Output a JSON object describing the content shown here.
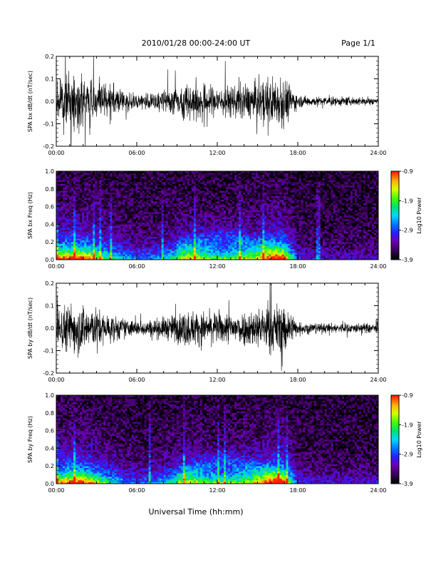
{
  "header": {
    "title": "2010/01/28  00:00-24:00 UT",
    "page": "Page 1/1"
  },
  "footer": {
    "xlabel": "Universal Time (hh:mm)"
  },
  "colors": {
    "background": "#ffffff",
    "trace": "#000000",
    "colormap": [
      "#000000",
      "#3a0058",
      "#6a00b0",
      "#2a1cff",
      "#0078ff",
      "#00d8ff",
      "#00e070",
      "#40ff00",
      "#d8ff00",
      "#ffb000",
      "#ff2000"
    ]
  },
  "chart_data": [
    {
      "type": "line",
      "ylabel": "SPA bx dB/dt (nT/sec)",
      "xlim": [
        "00:00",
        "24:00"
      ],
      "ylim": [
        -0.2,
        0.2
      ],
      "x_ticks": [
        "00:00",
        "06:00",
        "12:00",
        "18:00",
        "24:00"
      ],
      "y_ticks": [
        "-0.2",
        "-0.1",
        "0.0",
        "0.1",
        "0.2"
      ],
      "series": [
        {
          "x_hours": [
            0,
            1,
            2,
            3,
            4,
            5,
            6,
            7,
            8,
            9,
            10,
            11,
            12,
            13,
            14,
            15,
            16,
            17,
            18,
            19,
            20,
            21,
            22,
            23,
            24
          ],
          "envelope_amplitude": [
            0.18,
            0.2,
            0.2,
            0.16,
            0.12,
            0.09,
            0.07,
            0.07,
            0.09,
            0.12,
            0.16,
            0.14,
            0.12,
            0.13,
            0.14,
            0.15,
            0.2,
            0.2,
            0.05,
            0.04,
            0.035,
            0.035,
            0.035,
            0.035,
            0.035
          ]
        }
      ]
    },
    {
      "type": "heatmap",
      "ylabel": "SPA bx Freq (Hz)",
      "xlim": [
        "00:00",
        "24:00"
      ],
      "ylim": [
        0.0,
        1.0
      ],
      "x_ticks": [
        "00:00",
        "06:00",
        "12:00",
        "18:00",
        "24:00"
      ],
      "y_ticks": [
        "0.0",
        "0.2",
        "0.4",
        "0.6",
        "0.8",
        "1.0"
      ],
      "colorbar": {
        "label": "Log10 Power",
        "range": [
          -3.9,
          -0.9
        ],
        "ticks": [
          "-0.9",
          "-1.9",
          "-2.9",
          "-3.9"
        ]
      }
    },
    {
      "type": "line",
      "ylabel": "SPA by dB/dt (nT/sec)",
      "xlim": [
        "00:00",
        "24:00"
      ],
      "ylim": [
        -0.2,
        0.2
      ],
      "x_ticks": [
        "00:00",
        "06:00",
        "12:00",
        "18:00",
        "24:00"
      ],
      "y_ticks": [
        "-0.2",
        "-0.1",
        "0.0",
        "0.1",
        "0.2"
      ],
      "series": [
        {
          "x_hours": [
            0,
            1,
            2,
            3,
            4,
            5,
            6,
            7,
            8,
            9,
            10,
            11,
            12,
            13,
            14,
            15,
            16,
            17,
            18,
            19,
            20,
            21,
            22,
            23,
            24
          ],
          "envelope_amplitude": [
            0.16,
            0.2,
            0.2,
            0.15,
            0.11,
            0.08,
            0.06,
            0.07,
            0.09,
            0.12,
            0.15,
            0.13,
            0.12,
            0.13,
            0.14,
            0.16,
            0.2,
            0.2,
            0.05,
            0.045,
            0.04,
            0.04,
            0.04,
            0.04,
            0.04
          ]
        }
      ]
    },
    {
      "type": "heatmap",
      "ylabel": "SPA by Freq (Hz)",
      "xlim": [
        "00:00",
        "24:00"
      ],
      "ylim": [
        0.0,
        1.0
      ],
      "x_ticks": [
        "00:00",
        "06:00",
        "12:00",
        "18:00",
        "24:00"
      ],
      "y_ticks": [
        "0.0",
        "0.2",
        "0.4",
        "0.6",
        "0.8",
        "1.0"
      ],
      "colorbar": {
        "label": "Log10 Power",
        "range": [
          -3.9,
          -0.9
        ],
        "ticks": [
          "-0.9",
          "-1.9",
          "-2.9",
          "-3.9"
        ]
      }
    }
  ]
}
